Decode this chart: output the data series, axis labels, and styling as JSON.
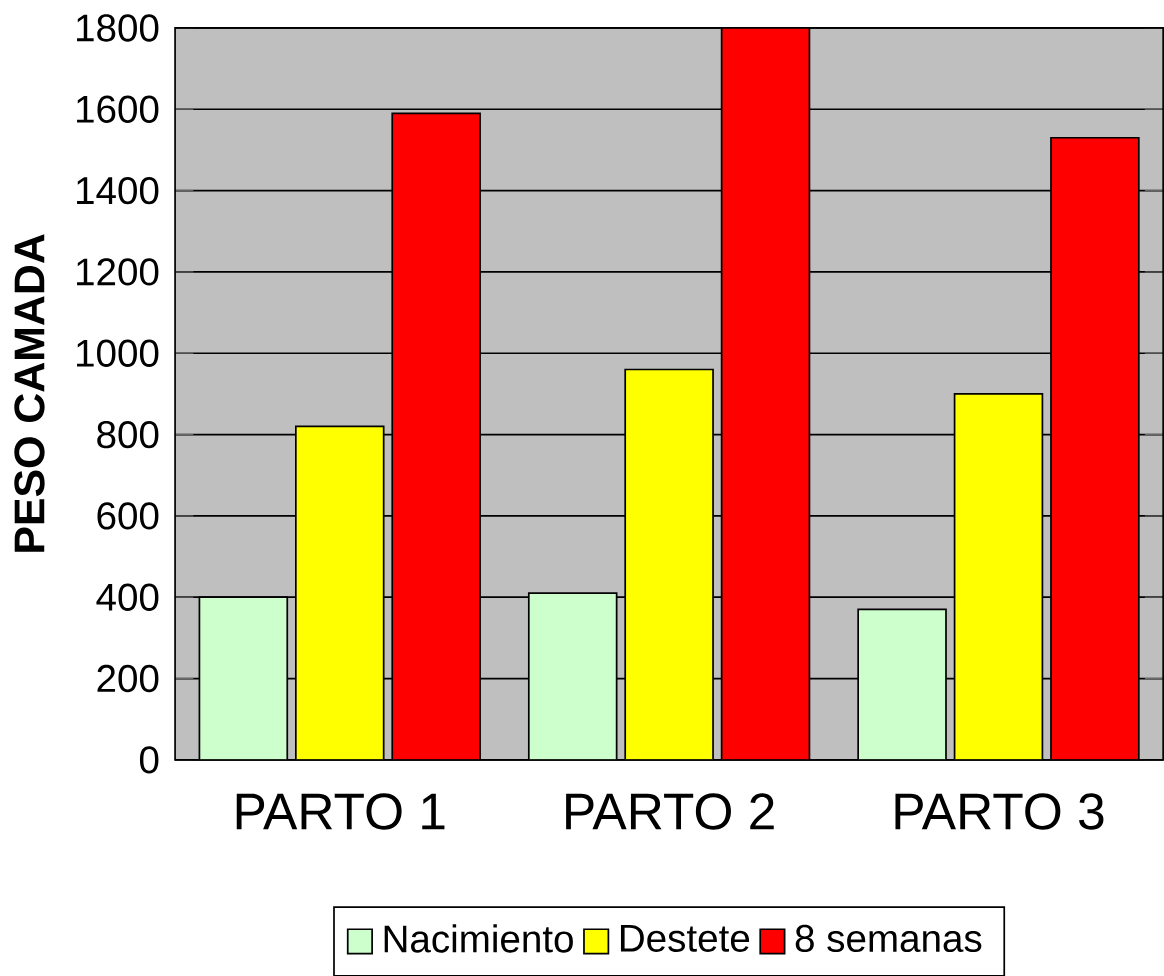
{
  "chart_data": {
    "type": "bar",
    "ylabel": "PESO CAMADA",
    "categories": [
      "PARTO 1",
      "PARTO 2",
      "PARTO 3"
    ],
    "series": [
      {
        "name": "Nacimiento",
        "color": "#ccffcc",
        "values": [
          400,
          410,
          370
        ]
      },
      {
        "name": "Destete",
        "color": "#ffff00",
        "values": [
          820,
          960,
          900
        ]
      },
      {
        "name": "8 semanas",
        "color": "#ff0000",
        "values": [
          1590,
          1800,
          1530
        ]
      }
    ],
    "ylim": [
      0,
      1800
    ],
    "yticks": [
      0,
      200,
      400,
      600,
      800,
      1000,
      1200,
      1400,
      1600,
      1800
    ],
    "grid": "y",
    "legend": "bottom"
  }
}
